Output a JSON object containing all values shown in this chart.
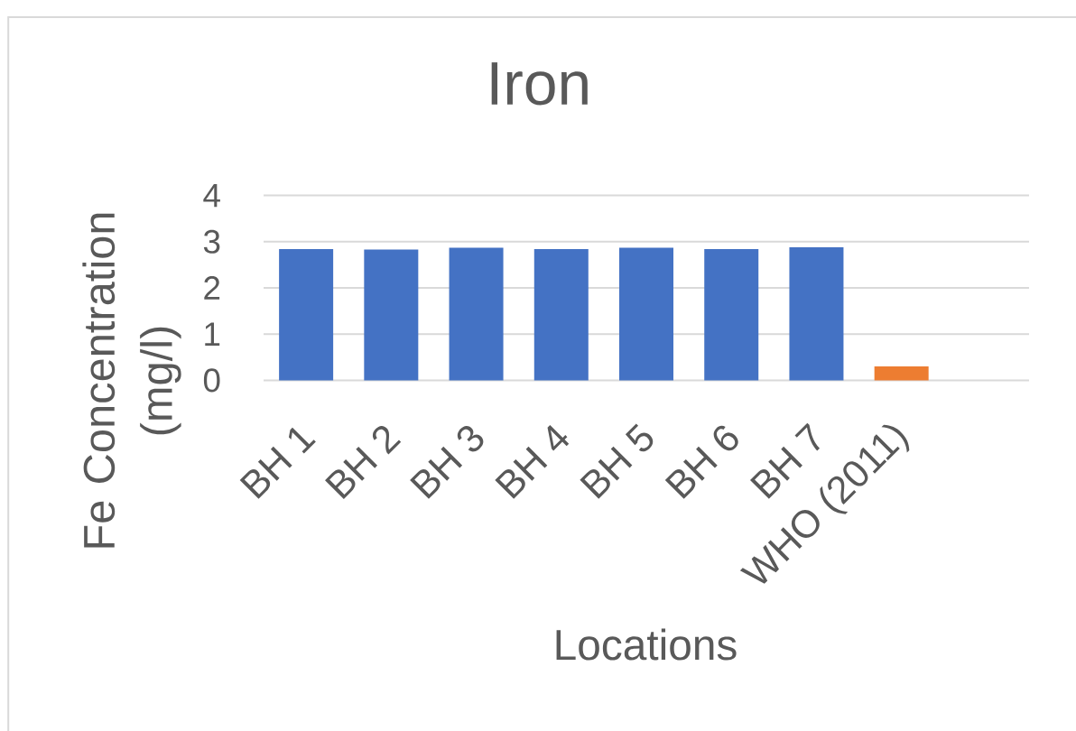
{
  "chart_data": {
    "type": "bar",
    "title": "Iron",
    "xlabel": "Locations",
    "ylabel": "Fe Concentration (mg/l)",
    "categories": [
      "BH 1",
      "BH 2",
      "BH 3",
      "BH 4",
      "BH 5",
      "BH 6",
      "BH 7",
      "WHO (2011)",
      null
    ],
    "values": [
      2.84,
      2.83,
      2.87,
      2.84,
      2.87,
      2.84,
      2.88,
      0.3,
      null
    ],
    "colors": [
      "#4472c4",
      "#4472c4",
      "#4472c4",
      "#4472c4",
      "#4472c4",
      "#4472c4",
      "#4472c4",
      "#ed7d31",
      null
    ],
    "ylim": [
      0,
      4
    ],
    "yticks": [
      0,
      1,
      2,
      3,
      4
    ],
    "grid": "y"
  }
}
